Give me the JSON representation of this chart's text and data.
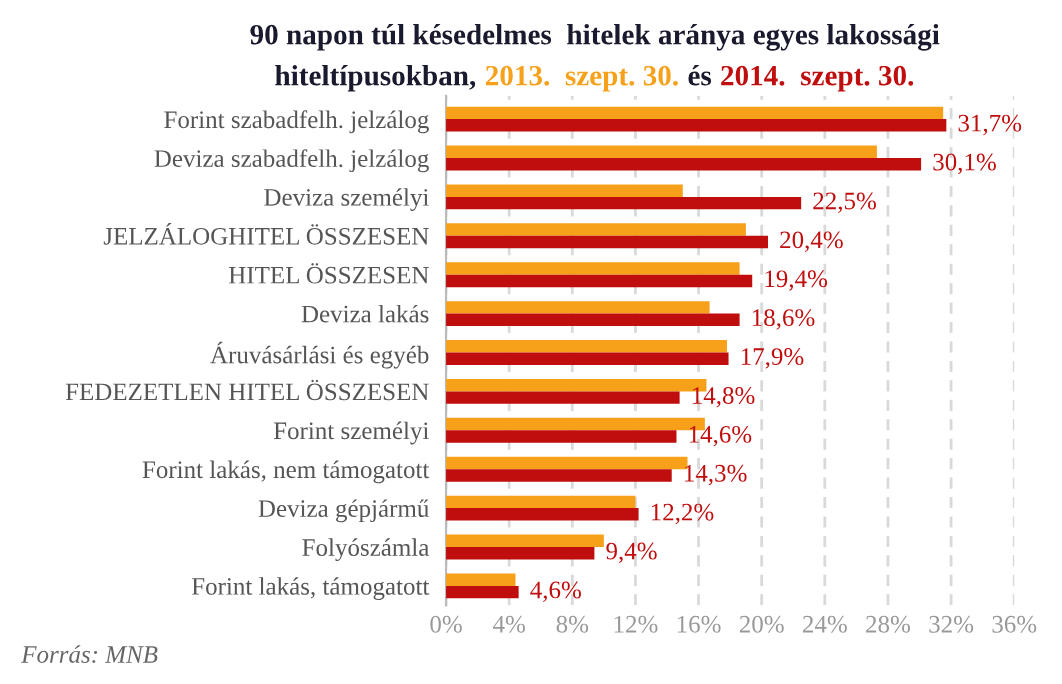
{
  "chart_data": {
    "type": "bar",
    "orientation": "horizontal",
    "title": "90 napon túl késedelmes  hitelek aránya egyes lakossági",
    "subtitle": "hiteltípusokban,",
    "annotations": [
      "és",
      "Forrás: MNB"
    ],
    "categories": [
      "Forint szabadfelh. jelzálog",
      "Deviza szabadfelh. jelzálog",
      "Deviza személyi",
      "JELZÁLOGHITEL ÖSSZESEN",
      "HITEL ÖSSZESEN",
      "Deviza lakás",
      "Áruvásárlási és egyéb",
      "FEDEZETLEN HITEL ÖSSZESEN",
      "Forint személyi",
      "Forint lakás, nem támogatott",
      "Deviza gépjármű",
      "Folyószámla",
      "Forint lakás, támogatott"
    ],
    "series": [
      {
        "name": "2013.  szept. 30.",
        "color": "#f7a11a",
        "values": [
          31.5,
          27.3,
          15.0,
          19.0,
          18.6,
          16.7,
          17.8,
          16.5,
          16.4,
          15.3,
          12.0,
          10.0,
          4.4
        ]
      },
      {
        "name": "2014.  szept. 30.",
        "color": "#c00d0d",
        "values": [
          31.7,
          30.1,
          22.5,
          20.4,
          19.4,
          18.6,
          17.9,
          14.8,
          14.6,
          14.3,
          12.2,
          9.4,
          4.6
        ],
        "value_labels": [
          "31,7%",
          "30,1%",
          "22,5%",
          "20,4%",
          "19,4%",
          "18,6%",
          "17,9%",
          "14,8%",
          "14,6%",
          "14,3%",
          "12,2%",
          "9,4%",
          "4,6%"
        ]
      }
    ],
    "xlim": [
      0,
      36
    ],
    "xticks": [
      {
        "value": 0,
        "label": "0%"
      },
      {
        "value": 4,
        "label": "4%"
      },
      {
        "value": 8,
        "label": "8%"
      },
      {
        "value": 12,
        "label": "12%"
      },
      {
        "value": 16,
        "label": "16%"
      },
      {
        "value": 20,
        "label": "20%"
      },
      {
        "value": 24,
        "label": "24%"
      },
      {
        "value": 28,
        "label": "28%"
      },
      {
        "value": 32,
        "label": "32%"
      },
      {
        "value": 36,
        "label": "36%"
      }
    ],
    "grid": "x",
    "legend": false
  }
}
